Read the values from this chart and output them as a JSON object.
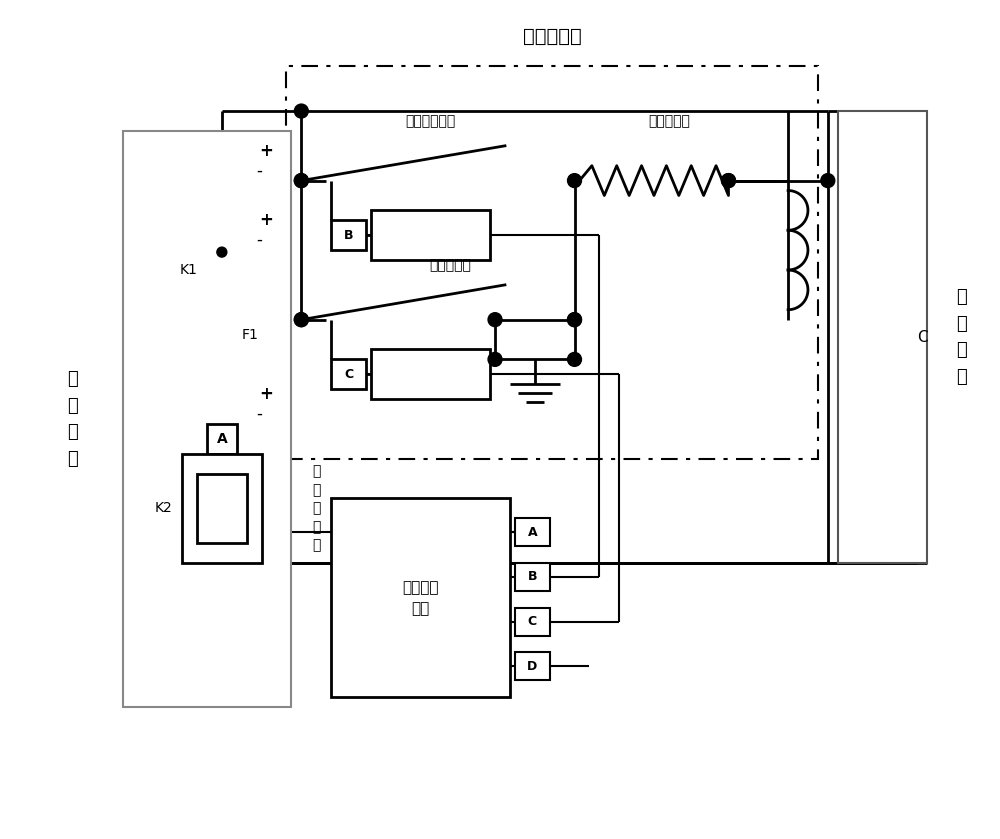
{
  "title": "预充电电路",
  "label_precharge_contactor": "预充电接触器",
  "label_precharge_resistor": "预充电电阻",
  "label_positive_contactor": "正极接触器",
  "label_negative_contactor": "负\n极\n接\n触\n器",
  "label_vehicle_control": "整车控制\n单元",
  "label_high_voltage_load": "高\n压\n负\n载",
  "label_battery_system": "电\n池\n系\n统",
  "label_K1": "K1",
  "label_K2": "K2",
  "label_F1": "F1",
  "label_A": "A",
  "label_B": "B",
  "label_C": "C",
  "label_cap_C": "C",
  "label_A_pin": "A",
  "label_B_pin": "B",
  "label_C_pin": "C",
  "label_D_pin": "D",
  "bg_color": "#ffffff",
  "lc": "#000000"
}
